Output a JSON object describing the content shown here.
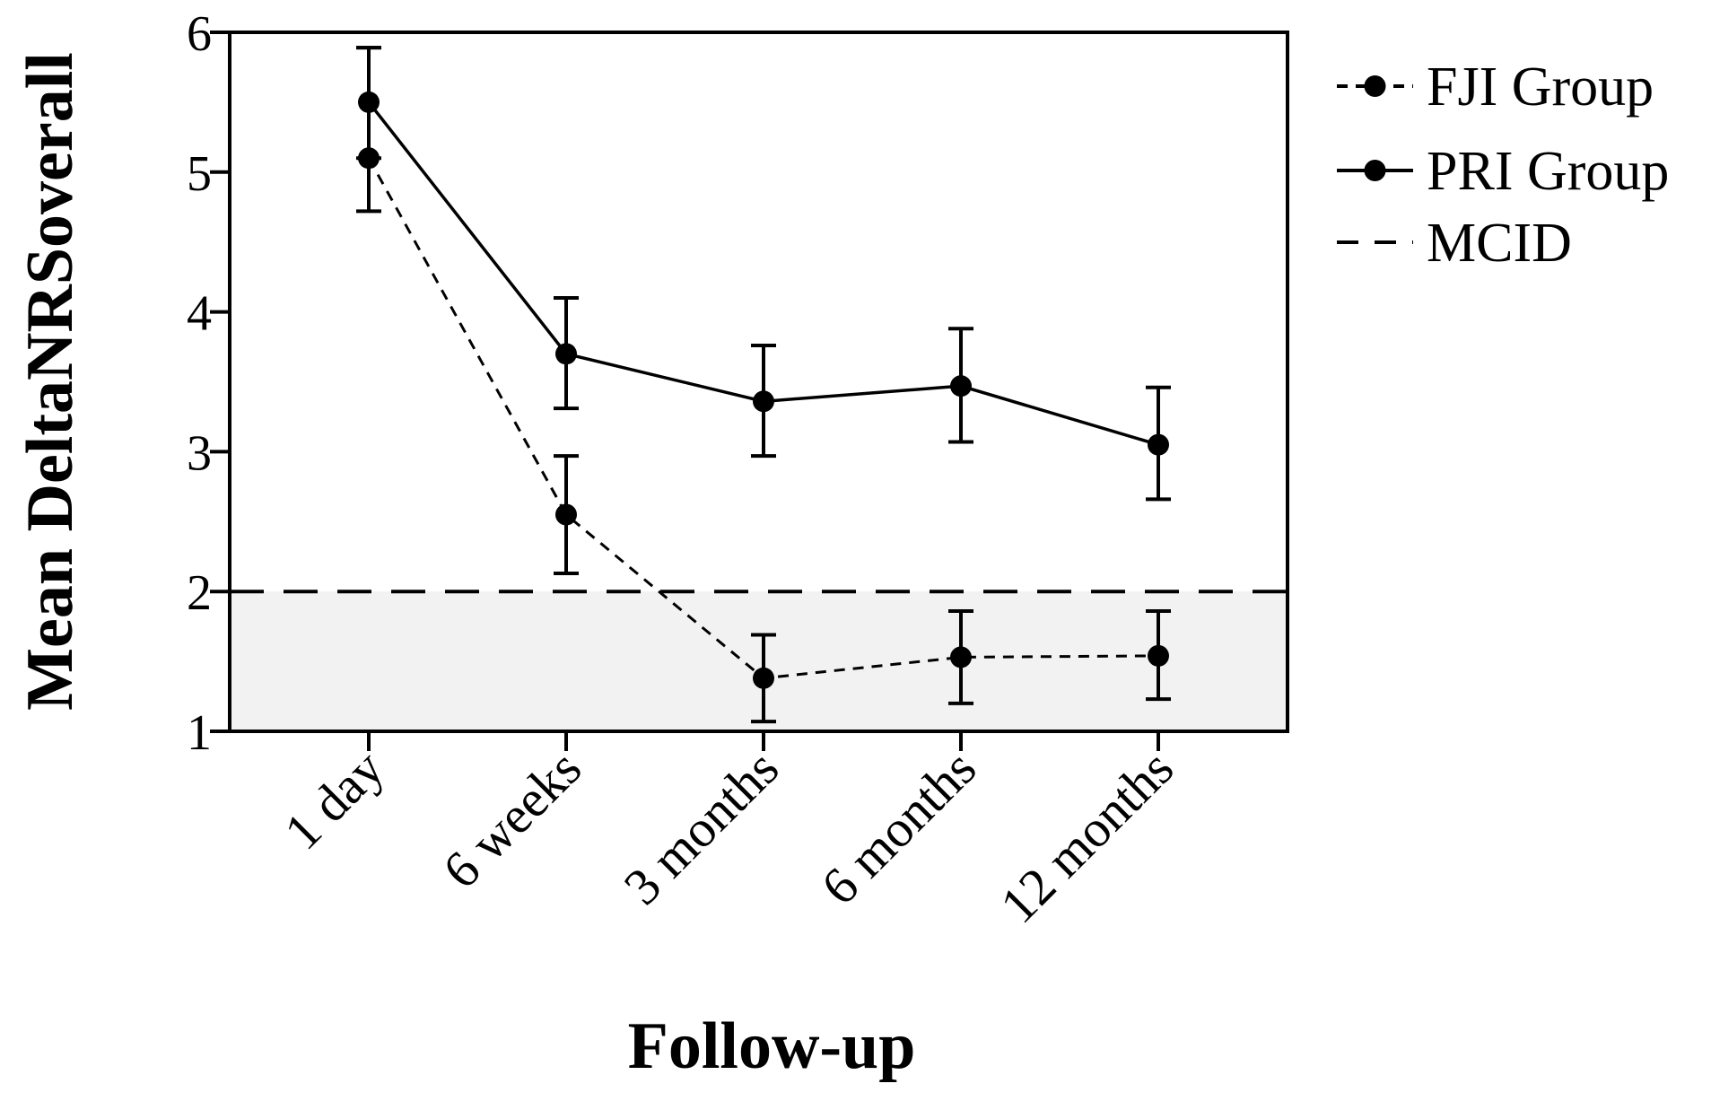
{
  "chart_data": {
    "type": "line",
    "title": "",
    "xlabel": "Follow-up",
    "ylabel": "Mean DeltaNRSoverall",
    "categories": [
      "1 day",
      "6 weeks",
      "3 months",
      "6 months",
      "12 months"
    ],
    "ylim": [
      1,
      6
    ],
    "yticks": [
      1,
      2,
      3,
      4,
      5,
      6
    ],
    "ytick_labels": [
      "1",
      "2",
      "3",
      "4",
      "5",
      "6"
    ],
    "grid": false,
    "legend_position": "right",
    "series": [
      {
        "name": "FJI Group",
        "line_style": "dashed",
        "values": [
          5.1,
          2.55,
          1.38,
          1.53,
          1.54
        ],
        "error_low": [
          4.72,
          2.13,
          1.07,
          1.2,
          1.23
        ],
        "error_high": [
          5.89,
          2.97,
          1.69,
          1.86,
          1.86
        ]
      },
      {
        "name": "PRI Group",
        "line_style": "solid",
        "values": [
          5.5,
          3.7,
          3.36,
          3.47,
          3.05
        ],
        "error_low": [
          5.1,
          3.31,
          2.97,
          3.07,
          2.66
        ],
        "error_high": [
          5.89,
          4.1,
          3.76,
          3.88,
          3.46
        ]
      }
    ],
    "reference_line": {
      "name": "MCID",
      "value": 2,
      "line_style": "long-dashed",
      "shaded_below": true
    },
    "colors": {
      "line": "#000000",
      "shade": "#f2f2f2",
      "background": "#ffffff"
    }
  }
}
